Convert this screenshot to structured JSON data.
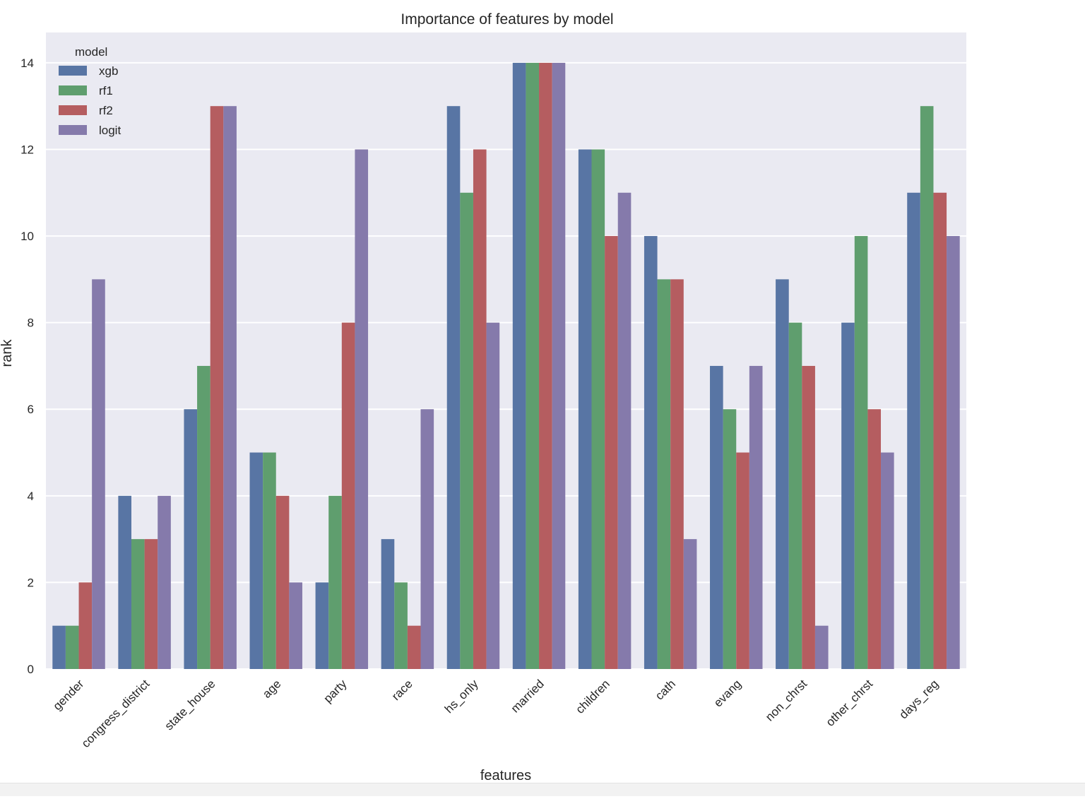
{
  "chart_data": {
    "type": "bar",
    "title": "Importance of features by model",
    "xlabel": "features",
    "ylabel": "rank",
    "ylim": [
      0,
      14.7
    ],
    "yticks": [
      0,
      2,
      4,
      6,
      8,
      10,
      12,
      14
    ],
    "grid": true,
    "legend_title": "model",
    "legend_position": "top-left",
    "categories": [
      "gender",
      "congress_district",
      "state_house",
      "age",
      "party",
      "race",
      "hs_only",
      "married",
      "children",
      "cath",
      "evang",
      "non_chrst",
      "other_chrst",
      "days_reg"
    ],
    "series": [
      {
        "name": "xgb",
        "color": "#5875a4",
        "values": [
          1,
          4,
          6,
          5,
          2,
          3,
          13,
          14,
          12,
          10,
          7,
          9,
          8,
          11
        ]
      },
      {
        "name": "rf1",
        "color": "#5f9e6e",
        "values": [
          1,
          3,
          7,
          5,
          4,
          2,
          11,
          14,
          12,
          9,
          6,
          8,
          10,
          13
        ]
      },
      {
        "name": "rf2",
        "color": "#b55d60",
        "values": [
          2,
          3,
          13,
          4,
          8,
          1,
          12,
          14,
          10,
          9,
          5,
          7,
          6,
          11
        ]
      },
      {
        "name": "logit",
        "color": "#857aab",
        "values": [
          9,
          4,
          13,
          2,
          12,
          6,
          8,
          14,
          11,
          3,
          7,
          1,
          5,
          10
        ]
      }
    ],
    "plot_background": "#eaeaf2",
    "grid_color": "#ffffff"
  }
}
